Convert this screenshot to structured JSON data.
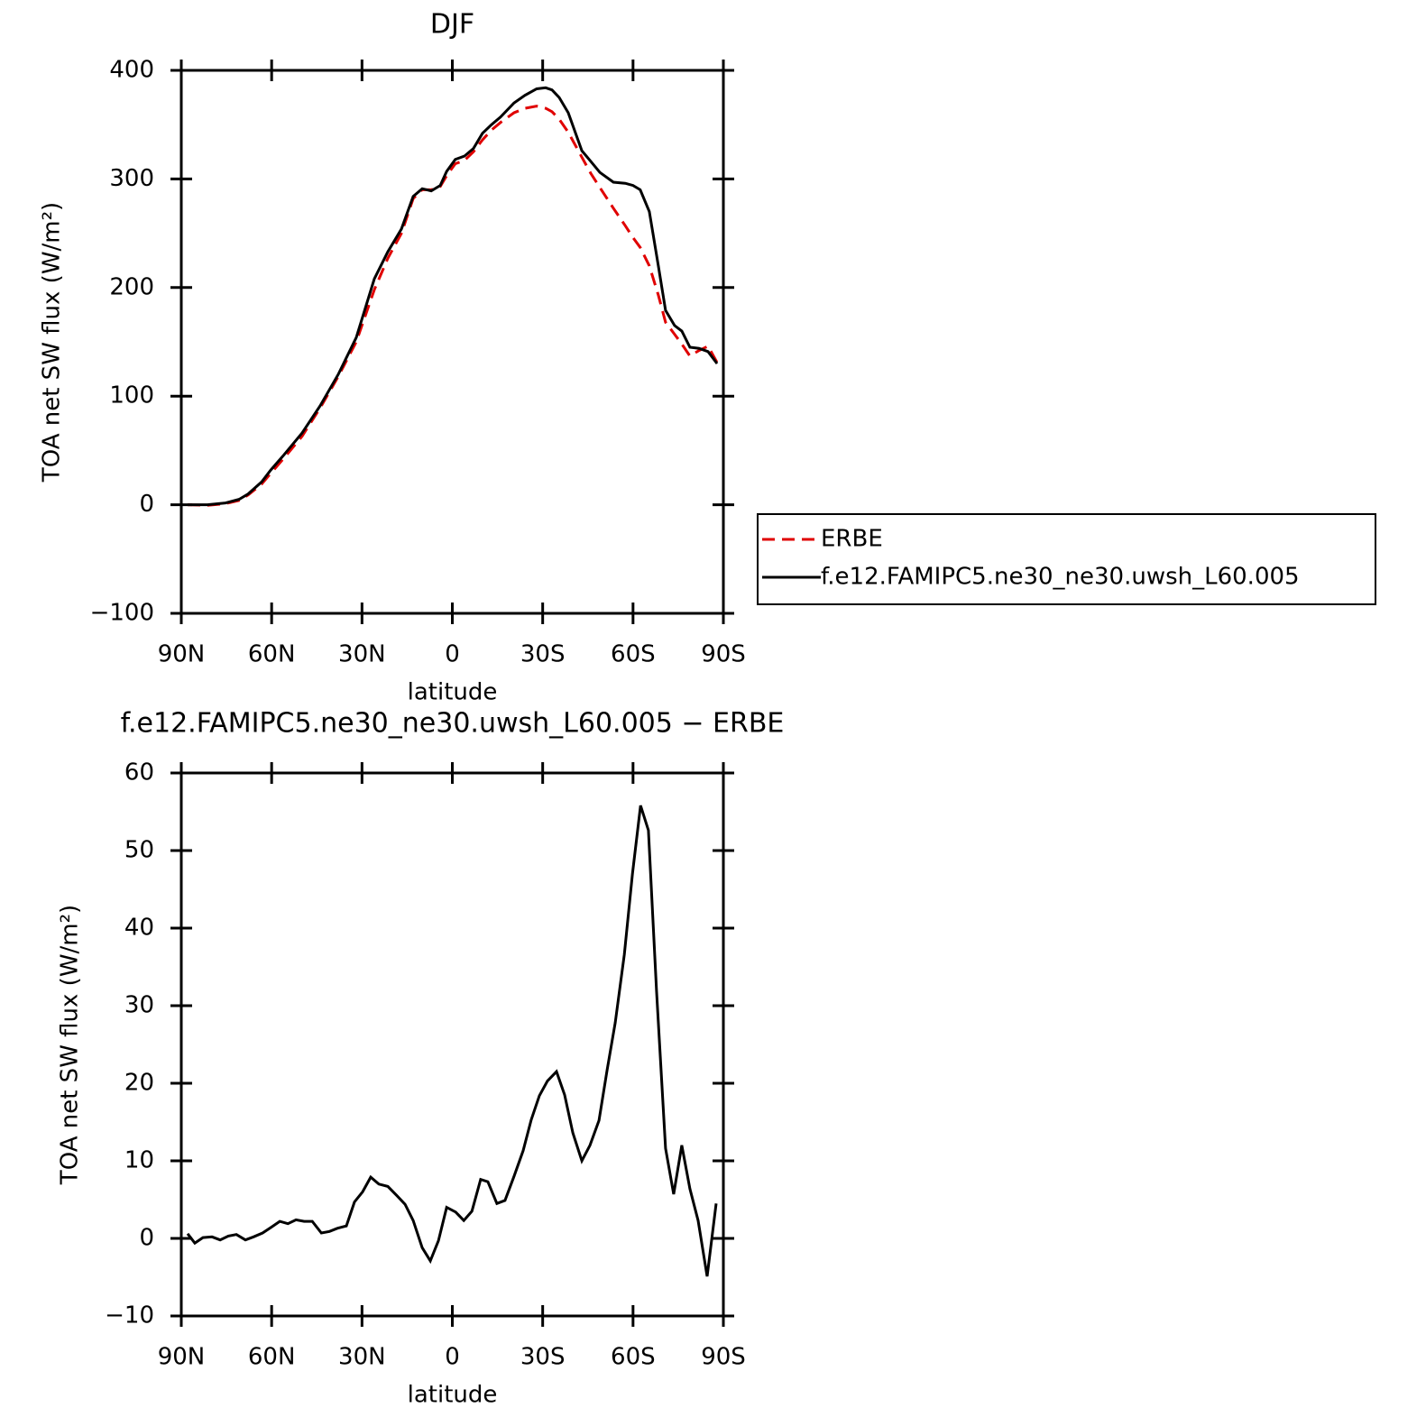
{
  "chart_data": [
    {
      "type": "line",
      "title": "DJF",
      "xlabel": "latitude",
      "ylabel": "TOA net SW flux (W/m²)",
      "xlim": [
        90,
        -90
      ],
      "ylim": [
        -100,
        400
      ],
      "xticks": [
        {
          "value": 90,
          "label": "90N"
        },
        {
          "value": 60,
          "label": "60N"
        },
        {
          "value": 30,
          "label": "30N"
        },
        0,
        {
          "value": -30,
          "label": "30S"
        },
        {
          "value": -60,
          "label": "60S"
        },
        {
          "value": -90,
          "label": "90S"
        }
      ],
      "yticks": [
        {
          "value": -100,
          "label": "−100"
        },
        0,
        100,
        200,
        300,
        400
      ],
      "legend": "right",
      "series": [
        {
          "name": "ERBE",
          "color": "#e00000",
          "linestyle": "dashed",
          "x": [
            87.9,
            81.3,
            75.3,
            70.8,
            67.8,
            63.3,
            60.3,
            55.9,
            49.9,
            43.9,
            37.9,
            31.9,
            25.9,
            21.4,
            16.9,
            13.0,
            10.0,
            7.0,
            4.0,
            1.9,
            -1.0,
            -4.0,
            -7.0,
            -10.0,
            -13.0,
            -16.0,
            -20.5,
            -24.1,
            -28.0,
            -31.0,
            -33.1,
            -35.5,
            -38.5,
            -43.0,
            -46.0,
            -49.0,
            -53.5,
            -57.4,
            -60.0,
            -62.4,
            -65.4,
            -68.4,
            -70.8,
            -73.8,
            -76.2,
            -78.9,
            -81.9,
            -84.9,
            -87.9
          ],
          "values": [
            0,
            -0.5,
            1,
            4,
            9,
            19,
            29,
            43,
            63,
            89,
            118,
            150,
            198,
            227,
            250,
            282,
            290,
            290,
            293,
            303,
            314,
            317,
            325,
            336,
            345,
            352,
            361,
            365,
            367,
            365,
            362,
            355,
            343,
            320,
            305,
            292,
            273,
            257,
            246,
            237,
            220,
            193,
            168,
            157,
            148,
            137,
            142,
            146,
            131
          ]
        },
        {
          "name": "f.e12.FAMIPC5.ne30_ne30.uwsh_L60.005",
          "color": "#000000",
          "linestyle": "solid",
          "x": [
            87.9,
            81.3,
            75.3,
            70.8,
            67.8,
            63.3,
            60.3,
            55.9,
            49.9,
            43.9,
            37.9,
            31.9,
            25.9,
            21.4,
            16.9,
            13.0,
            10.0,
            7.0,
            4.0,
            1.9,
            -1.0,
            -4.0,
            -7.0,
            -10.0,
            -13.0,
            -16.0,
            -20.5,
            -24.1,
            -28.0,
            -31.0,
            -33.1,
            -35.5,
            -38.5,
            -43.0,
            -46.0,
            -49.0,
            -53.5,
            -57.4,
            -60.0,
            -62.4,
            -65.4,
            -68.4,
            -70.8,
            -73.8,
            -76.2,
            -78.9,
            -81.9,
            -84.9,
            -87.9
          ],
          "values": [
            0,
            0,
            1.7,
            5,
            10,
            21,
            32,
            46,
            66,
            91,
            120,
            154,
            208,
            233,
            254,
            284,
            291,
            289,
            294,
            307,
            318,
            321,
            328,
            342,
            350,
            357,
            370,
            377,
            383,
            384,
            382,
            375,
            361,
            326,
            316,
            306,
            297,
            296,
            294,
            290,
            270,
            220,
            179,
            165,
            160,
            145,
            144,
            141,
            130
          ]
        }
      ]
    },
    {
      "type": "line",
      "title": "f.e12.FAMIPC5.ne30_ne30.uwsh_L60.005 − ERBE",
      "xlabel": "latitude",
      "ylabel": "TOA net SW flux (W/m²)",
      "xlim": [
        90,
        -90
      ],
      "ylim": [
        -10,
        60
      ],
      "xticks": [
        {
          "value": 90,
          "label": "90N"
        },
        {
          "value": 60,
          "label": "60N"
        },
        {
          "value": 30,
          "label": "30N"
        },
        0,
        {
          "value": -30,
          "label": "30S"
        },
        {
          "value": -60,
          "label": "60S"
        },
        {
          "value": -90,
          "label": "90S"
        }
      ],
      "yticks": [
        {
          "value": -10,
          "label": "−10"
        },
        0,
        10,
        20,
        30,
        40,
        50,
        60
      ],
      "series": [
        {
          "color": "#000000",
          "linestyle": "solid",
          "x": [
            87.9,
            85.5,
            82.8,
            79.8,
            77.1,
            74.4,
            71.7,
            68.7,
            66.0,
            63.0,
            60.3,
            57.3,
            54.6,
            51.9,
            49.2,
            46.5,
            43.5,
            40.8,
            38.2,
            35.2,
            32.5,
            29.8,
            27.1,
            24.4,
            21.4,
            18.4,
            15.7,
            13.0,
            10.0,
            7.3,
            4.6,
            1.9,
            -1.1,
            -3.8,
            -6.5,
            -9.4,
            -11.8,
            -14.8,
            -17.5,
            -20.5,
            -23.5,
            -26.2,
            -28.9,
            -31.6,
            -34.6,
            -37.3,
            -40.0,
            -43.0,
            -45.7,
            -48.7,
            -51.4,
            -54.1,
            -57.1,
            -59.8,
            -62.5,
            -65.1,
            -67.8,
            -70.8,
            -73.5,
            -76.2,
            -78.9,
            -81.6,
            -84.6,
            -87.6
          ],
          "values": [
            0.6,
            -0.6,
            0.1,
            0.2,
            -0.2,
            0.3,
            0.5,
            -0.2,
            0.2,
            0.7,
            1.4,
            2.2,
            1.9,
            2.4,
            2.2,
            2.2,
            0.7,
            0.9,
            1.3,
            1.6,
            4.7,
            6,
            7.9,
            7,
            6.7,
            5.5,
            4.4,
            2.3,
            -1.2,
            -2.9,
            -0.3,
            4,
            3.4,
            2.3,
            3.5,
            7.6,
            7.3,
            4.5,
            4.9,
            8,
            11.3,
            15.3,
            18.4,
            20.3,
            21.5,
            18.5,
            13.6,
            10,
            12,
            15.2,
            21.7,
            27.8,
            36.6,
            47,
            55.8,
            52.6,
            31.9,
            11.6,
            5.7,
            12,
            6.4,
            2.3,
            -4.9,
            4.5
          ]
        }
      ]
    }
  ]
}
